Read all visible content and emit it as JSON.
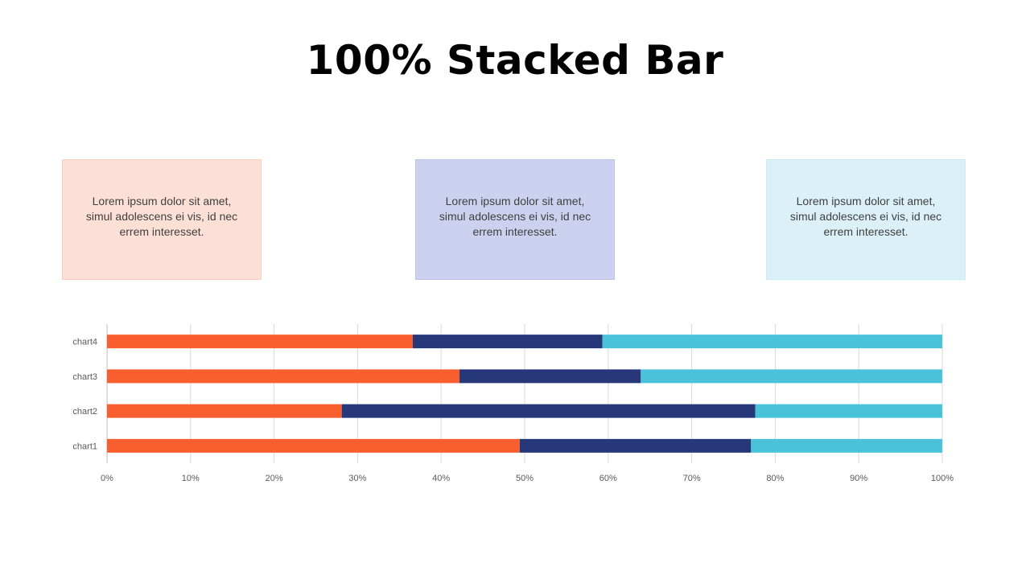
{
  "title": "100% Stacked Bar",
  "cards": [
    {
      "text": "Lorem ipsum dolor sit amet, simul adolescens ei vis, id nec errem interesset.",
      "bg": "#FCE0D6",
      "border": "#F9CFC0"
    },
    {
      "text": "Lorem ipsum dolor sit amet, simul adolescens ei vis, id nec errem interesset.",
      "bg": "#CBD1EE",
      "border": "#BCC3E8"
    },
    {
      "text": "Lorem ipsum dolor sit amet, simul adolescens ei vis, id nec errem interesset.",
      "bg": "#DBF1F7",
      "border": "#C9EAF3"
    }
  ],
  "chart_data": {
    "type": "bar",
    "orientation": "horizontal",
    "stacking": "percent",
    "categories": [
      "chart1",
      "chart2",
      "chart3",
      "chart4"
    ],
    "series": [
      {
        "values": [
          49.4,
          28.1,
          42.2,
          36.6
        ],
        "color": "#F95F2E"
      },
      {
        "values": [
          27.7,
          49.5,
          21.7,
          22.7
        ],
        "color": "#26377A"
      },
      {
        "values": [
          22.9,
          22.4,
          36.1,
          40.7
        ],
        "color": "#4AC2D9"
      }
    ],
    "xlim": [
      0,
      100
    ],
    "x_ticks": [
      "0%",
      "10%",
      "20%",
      "30%",
      "40%",
      "50%",
      "60%",
      "70%",
      "80%",
      "90%",
      "100%"
    ],
    "grid": true,
    "legend": "none"
  }
}
